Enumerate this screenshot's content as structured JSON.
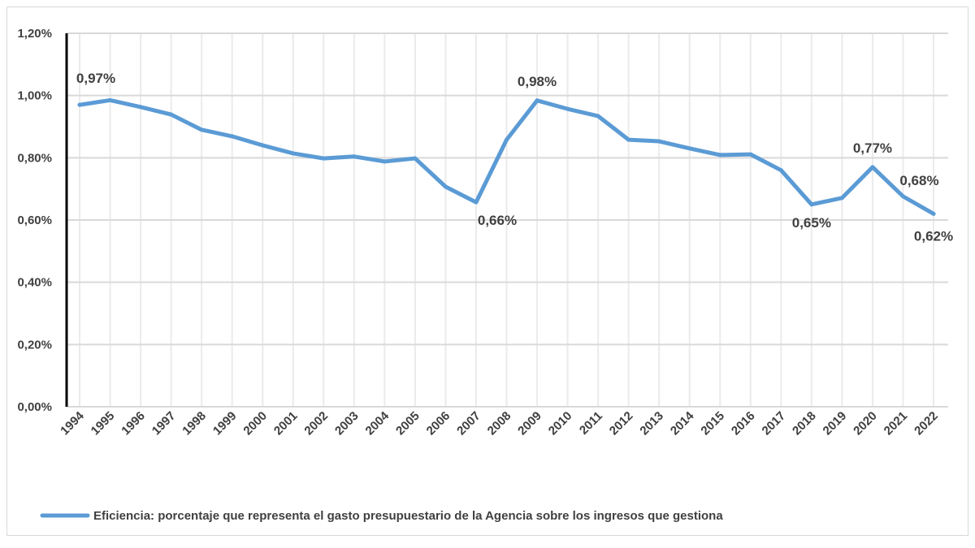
{
  "chart_data": {
    "type": "line",
    "title": "",
    "xlabel": "",
    "ylabel": "",
    "ylim": [
      0,
      1.2
    ],
    "yticks": [
      0,
      0.2,
      0.4,
      0.6,
      0.8,
      1.0,
      1.2
    ],
    "ytick_labels": [
      "0,00%",
      "0,20%",
      "0,40%",
      "0,60%",
      "0,80%",
      "1,00%",
      "1,20%"
    ],
    "grid": true,
    "legend_position": "bottom",
    "color": "#5b9bd5",
    "categories": [
      "1994",
      "1995",
      "1996",
      "1997",
      "1998",
      "1999",
      "2000",
      "2001",
      "2002",
      "2003",
      "2004",
      "2005",
      "2006",
      "2007",
      "2008",
      "2009",
      "2010",
      "2011",
      "2012",
      "2013",
      "2014",
      "2015",
      "2016",
      "2017",
      "2018",
      "2019",
      "2020",
      "2021",
      "2022"
    ],
    "series": [
      {
        "name": "Eficiencia: porcentaje que representa el gasto presupuestario de la Agencia sobre los ingresos que gestiona",
        "values": [
          0.97,
          0.985,
          0.963,
          0.939,
          0.89,
          0.869,
          0.84,
          0.814,
          0.798,
          0.804,
          0.788,
          0.798,
          0.707,
          0.657,
          0.858,
          0.984,
          0.957,
          0.934,
          0.858,
          0.853,
          0.83,
          0.809,
          0.811,
          0.76,
          0.65,
          0.671,
          0.77,
          0.676,
          0.62
        ]
      }
    ],
    "data_labels": [
      {
        "category": "1994",
        "text": "0,97%",
        "pos": "above"
      },
      {
        "category": "2009",
        "text": "0,98%",
        "pos": "above"
      },
      {
        "category": "2007",
        "text": "0,66%",
        "pos": "below"
      },
      {
        "category": "2020",
        "text": "0,77%",
        "pos": "above"
      },
      {
        "category": "2018",
        "text": "0,65%",
        "pos": "below"
      },
      {
        "category": "2021",
        "text": "0,68%",
        "pos": "above"
      },
      {
        "category": "2022",
        "text": "0,62%",
        "pos": "below"
      }
    ]
  }
}
